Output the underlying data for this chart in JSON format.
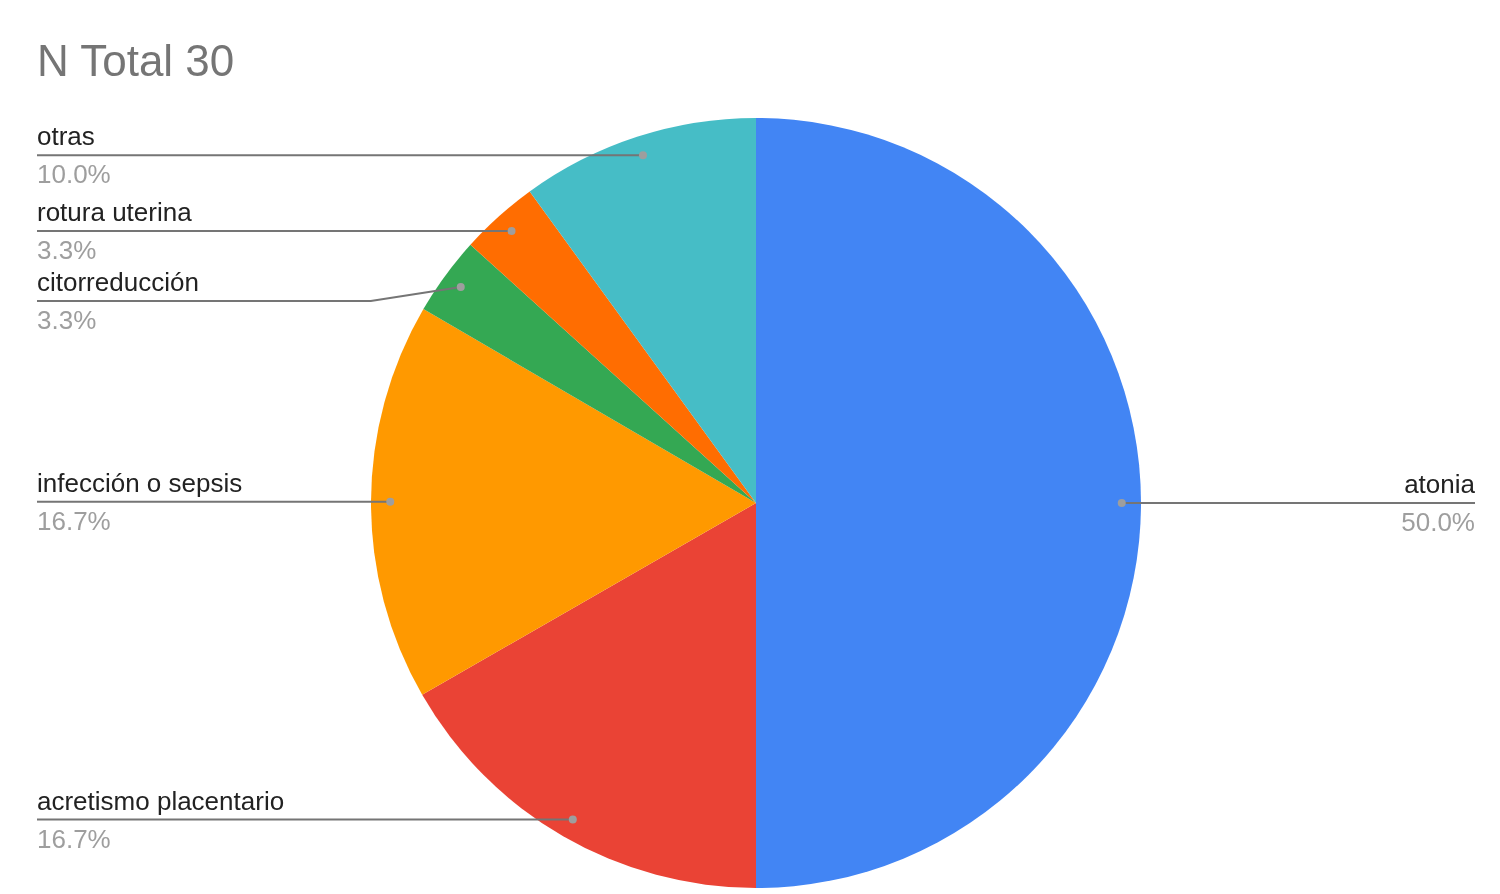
{
  "chart_data": {
    "type": "pie",
    "title": "N Total 30",
    "categories": [
      "atonia",
      "acretismo placentario",
      "infección o sepsis",
      "citorreducción",
      "rotura uterina",
      "otras"
    ],
    "values": [
      50.0,
      16.7,
      16.7,
      3.3,
      3.3,
      10.0
    ],
    "value_labels": [
      "50.0%",
      "16.7%",
      "16.7%",
      "3.3%",
      "3.3%",
      "10.0%"
    ],
    "colors": [
      "#4285f4",
      "#ea4335",
      "#ff9900",
      "#34a853",
      "#ff6d01",
      "#46bdc6"
    ],
    "legend": false
  }
}
